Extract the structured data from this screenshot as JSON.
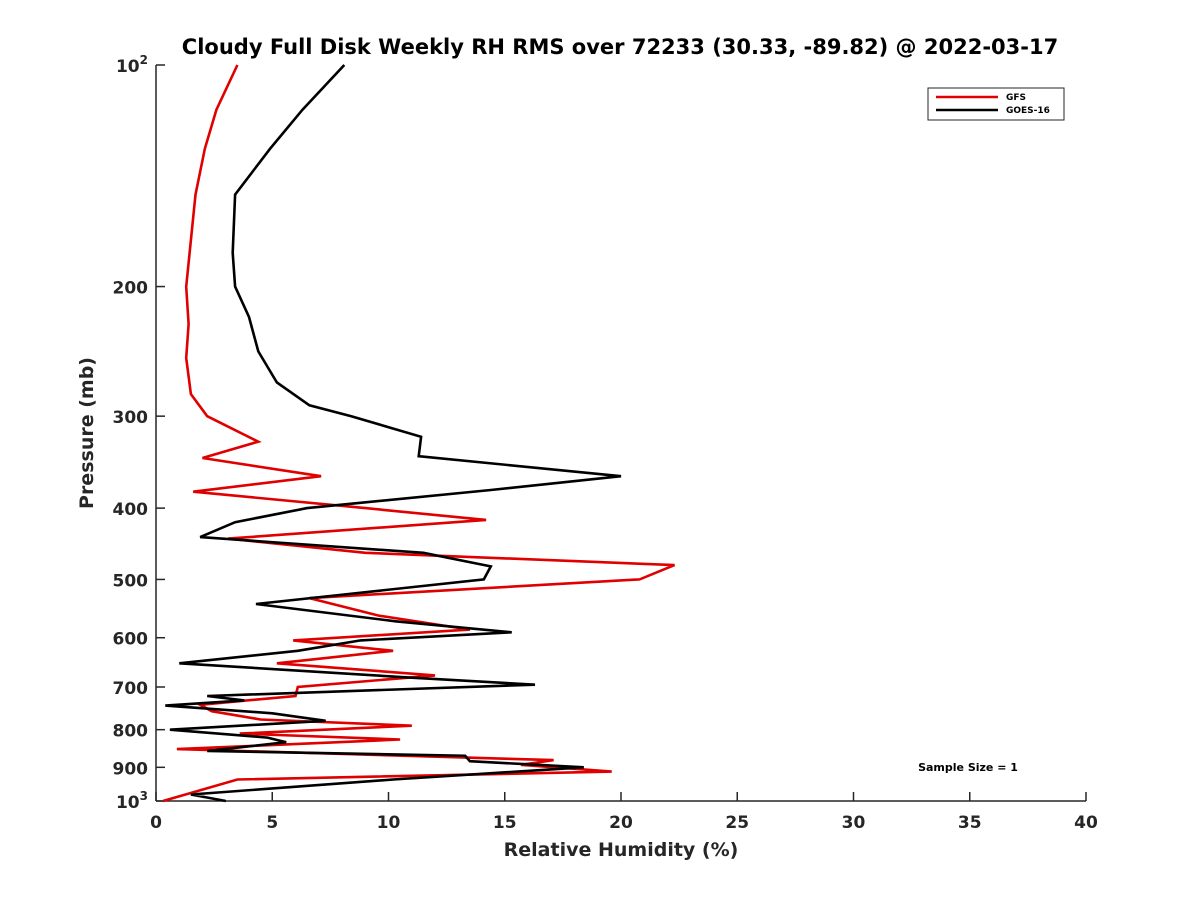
{
  "chart_data": {
    "type": "line",
    "title": "Cloudy Full Disk Weekly RH RMS over 72233 (30.33, -89.82) @ 2022-03-17",
    "xlabel": "Relative Humidity (%)",
    "ylabel": "Pressure (mb)",
    "xlim": [
      0,
      40
    ],
    "ylim": [
      100,
      1000
    ],
    "yscale": "log",
    "y_reversed": true,
    "x_ticks": [
      "0",
      "5",
      "10",
      "15",
      "20",
      "25",
      "30",
      "35",
      "40"
    ],
    "y_ticks": [
      {
        "value": 100,
        "base": "10",
        "exp": "2"
      },
      {
        "value": 200,
        "label": "200"
      },
      {
        "value": 300,
        "label": "300"
      },
      {
        "value": 400,
        "label": "400"
      },
      {
        "value": 500,
        "label": "500"
      },
      {
        "value": 600,
        "label": "600"
      },
      {
        "value": 700,
        "label": "700"
      },
      {
        "value": 800,
        "label": "800"
      },
      {
        "value": 900,
        "label": "900"
      },
      {
        "value": 1000,
        "base": "10",
        "exp": "3"
      }
    ],
    "legend_position": "top-right",
    "series": [
      {
        "name": "GFS",
        "color": "#e00000",
        "x": [
          3.5,
          2.6,
          2.1,
          1.7,
          1.3,
          1.4,
          1.3,
          1.5,
          2.2,
          4.4,
          2.0,
          7.1,
          1.6,
          9.0,
          14.2,
          3.1,
          9.0,
          22.3,
          20.8,
          6.6,
          9.6,
          13.5,
          5.9,
          10.2,
          5.2,
          12.0,
          6.1,
          6.0,
          1.9,
          2.4,
          4.5,
          11.0,
          3.6,
          10.5,
          0.9,
          17.1,
          15.7,
          19.6,
          3.5,
          0.3
        ],
        "y": [
          100,
          115,
          130,
          150,
          200,
          225,
          250,
          280,
          300,
          325,
          342,
          362,
          380,
          400,
          415,
          440,
          460,
          478,
          500,
          530,
          560,
          585,
          605,
          625,
          650,
          675,
          700,
          720,
          740,
          755,
          775,
          790,
          810,
          825,
          850,
          880,
          893,
          912,
          935,
          1000
        ]
      },
      {
        "name": "GOES-16",
        "color": "#000000",
        "x": [
          8.1,
          6.3,
          4.9,
          3.4,
          3.3,
          3.4,
          4.0,
          4.4,
          5.2,
          6.6,
          8.4,
          11.4,
          11.3,
          20.0,
          14.4,
          6.5,
          3.4,
          1.9,
          11.5,
          14.4,
          14.1,
          4.3,
          10.3,
          15.3,
          8.8,
          6.1,
          1.0,
          11.0,
          16.3,
          2.2,
          3.8,
          0.4,
          5.0,
          7.3,
          0.6,
          4.8,
          5.6,
          2.2,
          13.3,
          13.5,
          18.4,
          10.2,
          1.5,
          3.0
        ],
        "y": [
          100,
          115,
          130,
          150,
          180,
          200,
          220,
          245,
          270,
          290,
          300,
          320,
          340,
          362,
          378,
          400,
          418,
          438,
          460,
          480,
          500,
          540,
          570,
          590,
          605,
          625,
          650,
          680,
          695,
          720,
          730,
          742,
          760,
          778,
          800,
          820,
          832,
          855,
          868,
          883,
          900,
          935,
          980,
          1000
        ]
      }
    ],
    "annotations": [
      {
        "text": "Sample Size = 1"
      }
    ]
  }
}
